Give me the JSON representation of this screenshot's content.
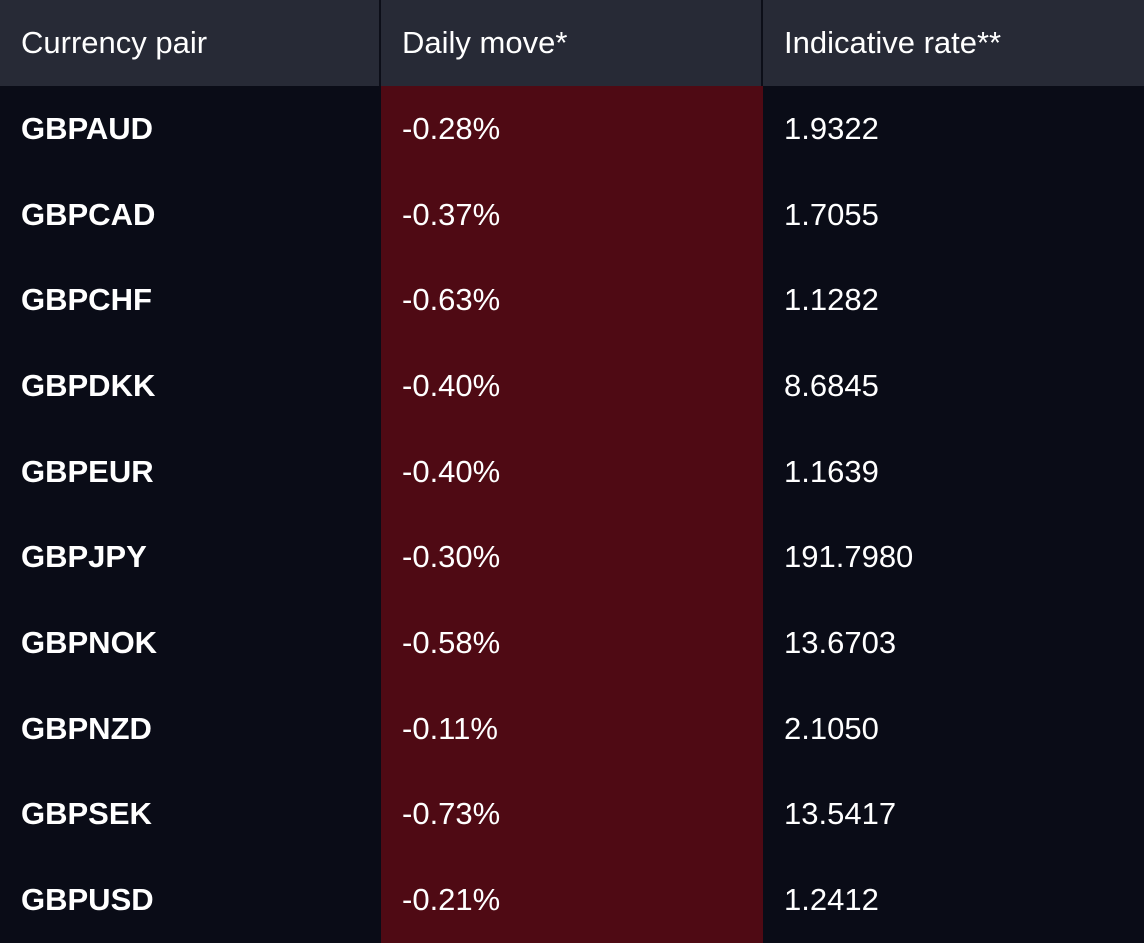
{
  "table": {
    "headers": [
      "Currency pair",
      "Daily move*",
      "Indicative rate**"
    ],
    "rows": [
      {
        "pair": "GBPAUD",
        "move": "-0.28%",
        "rate": "1.9322"
      },
      {
        "pair": "GBPCAD",
        "move": "-0.37%",
        "rate": "1.7055"
      },
      {
        "pair": "GBPCHF",
        "move": "-0.63%",
        "rate": "1.1282"
      },
      {
        "pair": "GBPDKK",
        "move": "-0.40%",
        "rate": "8.6845"
      },
      {
        "pair": "GBPEUR",
        "move": "-0.40%",
        "rate": "1.1639"
      },
      {
        "pair": "GBPJPY",
        "move": "-0.30%",
        "rate": "191.7980"
      },
      {
        "pair": "GBPNOK",
        "move": "-0.58%",
        "rate": "13.6703"
      },
      {
        "pair": "GBPNZD",
        "move": "-0.11%",
        "rate": "2.1050"
      },
      {
        "pair": "GBPSEK",
        "move": "-0.73%",
        "rate": "13.5417"
      },
      {
        "pair": "GBPUSD",
        "move": "-0.21%",
        "rate": "1.2412"
      }
    ]
  },
  "colors": {
    "background": "#0a0c17",
    "header_background": "#272a36",
    "negative_move_background": "#4f0a14",
    "text": "#ffffff"
  }
}
